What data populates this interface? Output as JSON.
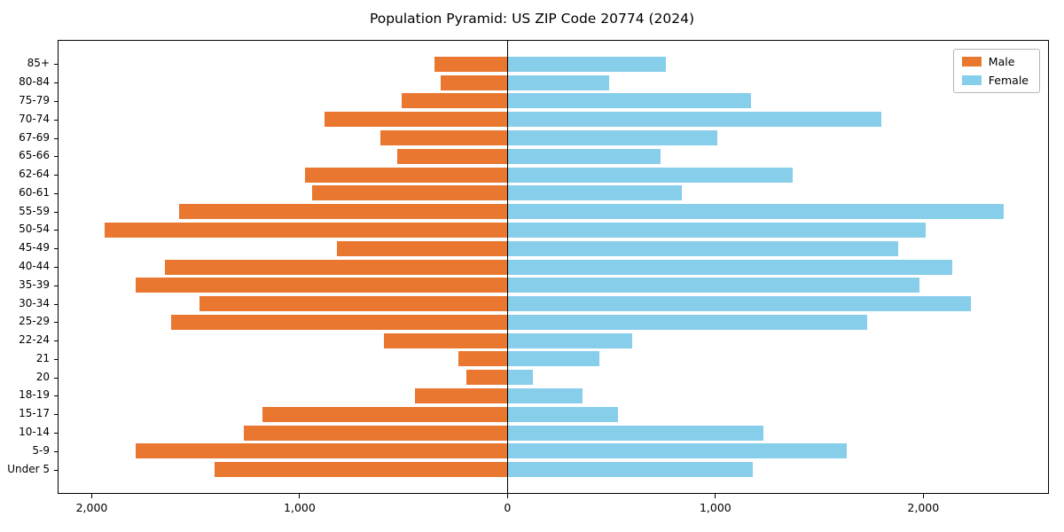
{
  "chart_data": {
    "type": "bar",
    "orientation": "horizontal",
    "title": "Population Pyramid: US ZIP Code 20774 (2024)",
    "categories": [
      "85+",
      "80-84",
      "75-79",
      "70-74",
      "67-69",
      "65-66",
      "62-64",
      "60-61",
      "55-59",
      "50-54",
      "45-49",
      "40-44",
      "35-39",
      "30-34",
      "25-29",
      "22-24",
      "21",
      "20",
      "18-19",
      "15-17",
      "10-14",
      "5-9",
      "Under 5"
    ],
    "series": [
      {
        "name": "Male",
        "color": "#e97730",
        "direction": "left",
        "values": [
          350,
          320,
          510,
          880,
          610,
          530,
          975,
          940,
          1580,
          1940,
          820,
          1650,
          1790,
          1480,
          1620,
          595,
          235,
          200,
          445,
          1180,
          1270,
          1790,
          1410
        ]
      },
      {
        "name": "Female",
        "color": "#87ceeb",
        "direction": "right",
        "values": [
          760,
          490,
          1170,
          1800,
          1010,
          735,
          1370,
          840,
          2385,
          2010,
          1880,
          2140,
          1980,
          2230,
          1730,
          600,
          440,
          120,
          360,
          530,
          1230,
          1630,
          1180
        ]
      }
    ],
    "xlim": [
      -2160,
      2600
    ],
    "x_ticks": [
      {
        "value": -2000,
        "label": "2,000"
      },
      {
        "value": -1000,
        "label": "1,000"
      },
      {
        "value": 0,
        "label": "0"
      },
      {
        "value": 1000,
        "label": "1,000"
      },
      {
        "value": 2000,
        "label": "2,000"
      }
    ],
    "legend": {
      "position": "upper right",
      "entries": [
        {
          "label": "Male",
          "color": "#e97730"
        },
        {
          "label": "Female",
          "color": "#87ceeb"
        }
      ]
    },
    "grid": false,
    "zero_line": true,
    "xlabel": "",
    "ylabel": ""
  }
}
